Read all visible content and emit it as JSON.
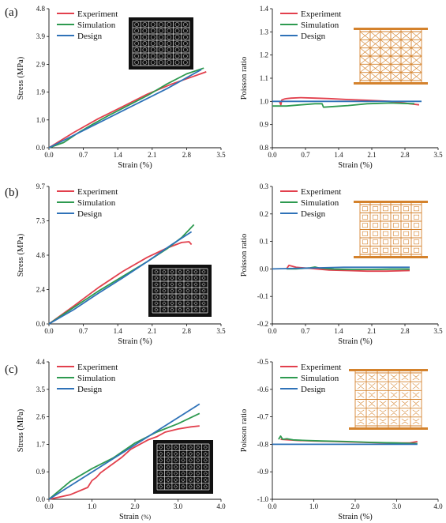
{
  "figure": {
    "panel_labels": [
      "(a)",
      "(b)",
      "(c)"
    ],
    "colors": {
      "experiment": "#e2404d",
      "simulation": "#2e9a50",
      "design": "#2f72b8",
      "lattice": "#d4822c",
      "inset_bg": "#101010",
      "inset_line": "#d8d8d8"
    }
  },
  "chart_data": [
    {
      "id": "a-stress",
      "panel": "(a)",
      "type": "line",
      "xlabel": "Strain (%)",
      "ylabel": "Stress (MPa)",
      "xlim": [
        0,
        3.5
      ],
      "ylim": [
        0,
        4.8
      ],
      "xticks": [
        "0.0",
        "0.7",
        "1.4",
        "2.1",
        "2.8",
        "3.5"
      ],
      "yticks": [
        "0.0",
        "1.0",
        "1.9",
        "2.9",
        "3.9",
        "4.8"
      ],
      "legend": [
        "Experiment",
        "Simulation",
        "Design"
      ],
      "legend_position": "top-left",
      "inset": "lattice-photo",
      "series": [
        {
          "name": "Experiment",
          "x": [
            0,
            0.5,
            1.0,
            1.5,
            2.0,
            2.5,
            3.0,
            3.2
          ],
          "y": [
            0,
            0.52,
            1.0,
            1.42,
            1.85,
            2.2,
            2.5,
            2.62
          ]
        },
        {
          "name": "Simulation",
          "x": [
            0,
            0.3,
            0.6,
            0.9,
            1.2,
            1.6,
            2.0,
            2.4,
            2.8,
            3.15
          ],
          "y": [
            0,
            0.18,
            0.52,
            0.82,
            1.1,
            1.45,
            1.8,
            2.2,
            2.55,
            2.75
          ]
        },
        {
          "name": "Design",
          "x": [
            0,
            0.8,
            1.6,
            2.4,
            3.1
          ],
          "y": [
            0,
            0.68,
            1.36,
            2.04,
            2.7
          ]
        }
      ]
    },
    {
      "id": "a-poisson",
      "panel": "(a)",
      "type": "line",
      "xlabel": "Strain (%)",
      "ylabel": "Poisson ratio",
      "xlim": [
        0,
        3.5
      ],
      "ylim": [
        0.8,
        1.4
      ],
      "xticks": [
        "0.0",
        "0.7",
        "1.4",
        "2.1",
        "2.8",
        "3.5"
      ],
      "yticks": [
        "0.8",
        "0.9",
        "1.0",
        "1.1",
        "1.2",
        "1.3",
        "1.4"
      ],
      "legend": [
        "Experiment",
        "Simulation",
        "Design"
      ],
      "legend_position": "top-left",
      "inset": "lattice-diagram",
      "series": [
        {
          "name": "Experiment",
          "x": [
            0.15,
            0.18,
            0.2,
            0.25,
            0.3,
            0.4,
            0.6,
            0.9,
            1.2,
            1.6,
            2.0,
            2.5,
            2.9,
            3.1
          ],
          "y": [
            1.0,
            0.985,
            1.006,
            1.01,
            1.012,
            1.014,
            1.016,
            1.014,
            1.012,
            1.008,
            1.005,
            1.0,
            0.99,
            0.985
          ]
        },
        {
          "name": "Simulation",
          "x": [
            0,
            0.3,
            0.6,
            0.9,
            1.05,
            1.08,
            1.3,
            1.6,
            2.0,
            2.5,
            3.0
          ],
          "y": [
            0.98,
            0.98,
            0.985,
            0.99,
            0.99,
            0.975,
            0.978,
            0.982,
            0.99,
            0.993,
            0.99
          ]
        },
        {
          "name": "Design",
          "x": [
            0,
            3.15
          ],
          "y": [
            1.0,
            1.0
          ]
        }
      ]
    },
    {
      "id": "b-stress",
      "panel": "(b)",
      "type": "line",
      "xlabel": "Strain (%)",
      "ylabel": "Stress (MPa)",
      "xlim": [
        0,
        3.5
      ],
      "ylim": [
        0,
        9.7
      ],
      "xticks": [
        "0.0",
        "0.7",
        "1.4",
        "2.1",
        "2.8",
        "3.5"
      ],
      "yticks": [
        "0.0",
        "2.4",
        "4.8",
        "7.3",
        "9.7"
      ],
      "legend": [
        "Experiment",
        "Simulation",
        "Design"
      ],
      "legend_position": "top-left",
      "inset": "lattice-photo",
      "series": [
        {
          "name": "Experiment",
          "x": [
            0,
            0.5,
            1.0,
            1.5,
            2.0,
            2.4,
            2.7,
            2.85,
            2.9
          ],
          "y": [
            0,
            1.25,
            2.55,
            3.7,
            4.7,
            5.35,
            5.75,
            5.8,
            5.6
          ]
        },
        {
          "name": "Simulation",
          "x": [
            0,
            0.5,
            1.0,
            1.5,
            2.0,
            2.4,
            2.7,
            2.95
          ],
          "y": [
            0,
            1.15,
            2.3,
            3.35,
            4.4,
            5.3,
            6.1,
            7.0
          ]
        },
        {
          "name": "Design",
          "x": [
            0,
            0.5,
            1.0,
            1.5,
            2.0,
            2.5,
            2.9
          ],
          "y": [
            0,
            1.0,
            2.15,
            3.25,
            4.4,
            5.6,
            6.5
          ]
        }
      ]
    },
    {
      "id": "b-poisson",
      "panel": "(b)",
      "type": "line",
      "xlabel": "Strain (%)",
      "ylabel": "Poisson ratio",
      "xlim": [
        0,
        3.5
      ],
      "ylim": [
        -0.2,
        0.3
      ],
      "xticks": [
        "0.0",
        "0.7",
        "1.4",
        "2.1",
        "2.8",
        "3.5"
      ],
      "yticks": [
        "-0.2",
        "-0.1",
        "0.0",
        "0.1",
        "0.2",
        "0.3"
      ],
      "legend": [
        "Experiment",
        "Simulation",
        "Design"
      ],
      "legend_position": "top-left",
      "inset": "lattice-diagram",
      "series": [
        {
          "name": "Experiment",
          "x": [
            0.3,
            0.35,
            0.5,
            0.8,
            1.2,
            1.6,
            2.0,
            2.4,
            2.9
          ],
          "y": [
            0.0,
            0.013,
            0.006,
            0.002,
            -0.004,
            -0.006,
            -0.008,
            -0.008,
            -0.006
          ]
        },
        {
          "name": "Simulation",
          "x": [
            0.3,
            0.5,
            0.8,
            0.9,
            1.0,
            1.3,
            1.7,
            2.1,
            2.5,
            2.9
          ],
          "y": [
            0.0,
            0.0,
            0.004,
            0.007,
            0.003,
            -0.001,
            -0.002,
            -0.002,
            -0.001,
            -0.001
          ]
        },
        {
          "name": "Design",
          "x": [
            0,
            1.0,
            1.5,
            2.9
          ],
          "y": [
            0.0,
            0.004,
            0.006,
            0.006
          ]
        }
      ]
    },
    {
      "id": "c-stress",
      "panel": "(c)",
      "type": "line",
      "xlabel": "Strain",
      "xlabel_unit": "(%)",
      "ylabel": "Stress (MPa)",
      "xlim": [
        0,
        4.0
      ],
      "ylim": [
        0,
        4.4
      ],
      "xticks": [
        "0.0",
        "1.0",
        "2.0",
        "3.0",
        "4.0"
      ],
      "yticks": [
        "0.0",
        "0.9",
        "1.7",
        "2.6",
        "3.5",
        "4.4"
      ],
      "legend": [
        "Experiment",
        "Simulation",
        "Design"
      ],
      "legend_position": "top-left",
      "inset": "lattice-photo",
      "series": [
        {
          "name": "Experiment",
          "x": [
            0,
            0.5,
            0.9,
            1.0,
            1.1,
            1.2,
            1.3,
            1.5,
            1.7,
            1.9,
            2.1,
            2.3,
            2.5,
            2.7,
            3.0,
            3.3,
            3.5
          ],
          "y": [
            0,
            0.15,
            0.38,
            0.6,
            0.7,
            0.85,
            0.95,
            1.15,
            1.35,
            1.6,
            1.75,
            1.9,
            2.0,
            2.15,
            2.25,
            2.32,
            2.35
          ]
        },
        {
          "name": "Simulation",
          "x": [
            0,
            0.5,
            1.0,
            1.5,
            2.0,
            2.5,
            3.0,
            3.5
          ],
          "y": [
            0,
            0.58,
            0.98,
            1.33,
            1.8,
            2.15,
            2.42,
            2.75
          ]
        },
        {
          "name": "Design",
          "x": [
            0,
            3.5
          ],
          "y": [
            0,
            3.05
          ]
        }
      ]
    },
    {
      "id": "c-poisson",
      "panel": "(c)",
      "type": "line",
      "xlabel": "Strain  (%)",
      "ylabel": "Poisson ratio",
      "xlim": [
        0,
        4.0
      ],
      "ylim": [
        -1.0,
        -0.5
      ],
      "xticks": [
        "0.0",
        "1.0",
        "2.0",
        "3.0",
        "4.0"
      ],
      "yticks": [
        "-1.0",
        "-0.9",
        "-0.8",
        "-0.7",
        "-0.6",
        "-0.5"
      ],
      "legend": [
        "Experiment",
        "Simulation",
        "Design"
      ],
      "legend_position": "top-left",
      "inset": "lattice-diagram",
      "series": [
        {
          "name": "Experiment",
          "x": [
            0.2,
            0.6,
            1.0,
            1.5,
            2.0,
            2.5,
            3.0,
            3.3,
            3.5
          ],
          "y": [
            -0.782,
            -0.786,
            -0.788,
            -0.79,
            -0.792,
            -0.794,
            -0.795,
            -0.795,
            -0.79
          ]
        },
        {
          "name": "Simulation",
          "x": [
            0.15,
            0.2,
            0.25,
            0.35,
            0.5,
            0.8,
            1.2,
            1.8,
            2.4,
            3.0,
            3.5
          ],
          "y": [
            -0.782,
            -0.77,
            -0.782,
            -0.78,
            -0.784,
            -0.786,
            -0.788,
            -0.79,
            -0.793,
            -0.795,
            -0.797
          ]
        },
        {
          "name": "Design",
          "x": [
            0,
            3.5
          ],
          "y": [
            -0.8,
            -0.8
          ]
        }
      ]
    }
  ]
}
